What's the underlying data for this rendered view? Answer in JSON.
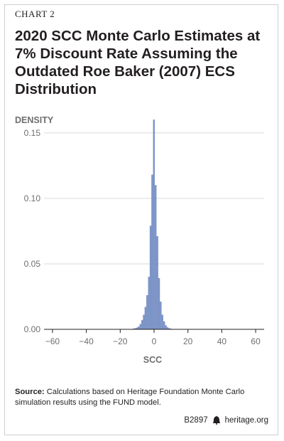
{
  "header": {
    "chart_label": "CHART 2",
    "title": "2020 SCC Monte Carlo Estimates at 7% Discount Rate Assuming the Outdated Roe Baker (2007) ECS Distribution"
  },
  "chart_data": {
    "type": "bar",
    "title": "",
    "xlabel": "SCC",
    "ylabel": "DENSITY",
    "xlim": [
      -65,
      65
    ],
    "ylim": [
      0,
      0.17
    ],
    "x_ticks": [
      "−60",
      "−40",
      "−20",
      "0",
      "20",
      "40",
      "60"
    ],
    "x_tick_values": [
      -60,
      -40,
      -20,
      0,
      20,
      40,
      60
    ],
    "y_ticks": [
      "0.00",
      "0.05",
      "0.10",
      "0.15"
    ],
    "y_tick_values": [
      0,
      0.05,
      0.1,
      0.15
    ],
    "grid": "horizontal",
    "bin_width": 1,
    "series": [
      {
        "x": [
          -12,
          -11,
          -10,
          -9,
          -8,
          -7,
          -6,
          -5,
          -4,
          -3,
          -2,
          -1,
          0,
          1,
          2,
          3,
          4,
          5,
          6,
          7,
          8,
          9,
          10
        ],
        "values": [
          0.0005,
          0.0008,
          0.0012,
          0.002,
          0.004,
          0.007,
          0.011,
          0.017,
          0.026,
          0.04,
          0.079,
          0.118,
          0.16,
          0.11,
          0.071,
          0.039,
          0.021,
          0.011,
          0.006,
          0.003,
          0.0015,
          0.0008,
          0.0004
        ]
      }
    ],
    "bar_color": "#7d95c9"
  },
  "footer": {
    "source_label": "Source:",
    "source_text": " Calculations based on Heritage Foundation Monte Carlo simulation results using the FUND model.",
    "code": "B2897",
    "site": "heritage.org"
  }
}
